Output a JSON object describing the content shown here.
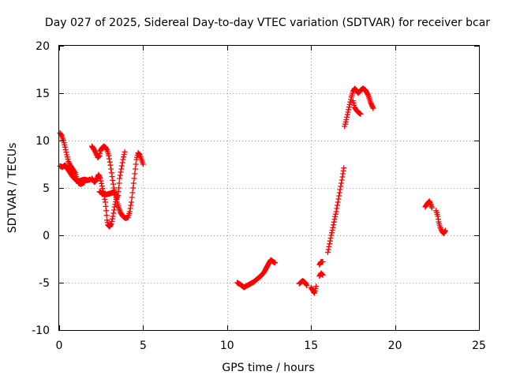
{
  "chart_data": {
    "type": "scatter",
    "title": "Day 027 of 2025, Sidereal Day-to-day VTEC variation (SDTVAR) for receiver bcar",
    "xlabel": "GPS time / hours",
    "ylabel": "SDTVAR / TECUs",
    "xlim": [
      0,
      25
    ],
    "ylim": [
      -10,
      20
    ],
    "xticks": [
      0,
      5,
      10,
      15,
      20,
      25
    ],
    "yticks": [
      -10,
      -5,
      0,
      5,
      10,
      15,
      20
    ],
    "xtick_labels": [
      "0",
      "5",
      "10",
      "15",
      "20",
      "25"
    ],
    "ytick_labels": [
      "-10",
      "-5",
      "0",
      "5",
      "10",
      "15",
      "20"
    ],
    "grid": true,
    "marker": "+",
    "color": "#ff0000",
    "series": [
      {
        "name": "SDTVAR",
        "segments": [
          [
            [
              0.05,
              7.3
            ],
            [
              0.2,
              7.2
            ],
            [
              0.35,
              7.4
            ],
            [
              0.5,
              7.0
            ],
            [
              0.65,
              6.6
            ],
            [
              0.8,
              6.2
            ],
            [
              0.95,
              5.9
            ],
            [
              1.1,
              5.7
            ],
            [
              1.3,
              5.8
            ],
            [
              1.5,
              5.9
            ],
            [
              1.7,
              5.8
            ],
            [
              1.85,
              5.9
            ]
          ],
          [
            [
              0.05,
              10.8
            ],
            [
              0.15,
              10.5
            ],
            [
              0.25,
              10.0
            ],
            [
              0.35,
              9.3
            ],
            [
              0.45,
              8.5
            ],
            [
              0.55,
              7.8
            ],
            [
              0.65,
              7.4
            ],
            [
              0.8,
              7.0
            ],
            [
              0.95,
              6.6
            ],
            [
              1.05,
              6.0
            ],
            [
              1.15,
              5.5
            ],
            [
              1.3,
              5.4
            ],
            [
              1.5,
              5.6
            ]
          ],
          [
            [
              1.95,
              9.4
            ],
            [
              2.1,
              9.0
            ],
            [
              2.2,
              8.6
            ],
            [
              2.3,
              8.2
            ],
            [
              2.4,
              8.4
            ],
            [
              2.45,
              8.9
            ],
            [
              2.55,
              9.2
            ],
            [
              2.65,
              9.4
            ],
            [
              2.75,
              9.3
            ],
            [
              2.85,
              9.0
            ],
            [
              2.95,
              8.4
            ],
            [
              3.05,
              7.4
            ],
            [
              3.15,
              6.2
            ],
            [
              3.25,
              5.0
            ],
            [
              3.35,
              4.3
            ],
            [
              3.45,
              3.5
            ],
            [
              3.55,
              2.9
            ],
            [
              3.65,
              2.4
            ],
            [
              3.8,
              2.0
            ],
            [
              3.95,
              1.8
            ],
            [
              4.1,
              1.9
            ],
            [
              4.2,
              2.5
            ],
            [
              4.3,
              3.5
            ],
            [
              4.4,
              5.0
            ],
            [
              4.5,
              6.5
            ],
            [
              4.6,
              8.0
            ],
            [
              4.7,
              8.7
            ],
            [
              4.8,
              8.5
            ],
            [
              4.9,
              8.0
            ],
            [
              5.0,
              7.5
            ]
          ],
          [
            [
              1.95,
              6.0
            ],
            [
              2.1,
              5.6
            ],
            [
              2.2,
              5.8
            ],
            [
              2.3,
              6.2
            ],
            [
              2.35,
              6.4
            ],
            [
              2.45,
              6.0
            ],
            [
              2.55,
              5.2
            ],
            [
              2.65,
              4.4
            ],
            [
              2.75,
              3.5
            ],
            [
              2.8,
              2.6
            ],
            [
              2.85,
              1.6
            ],
            [
              2.9,
              1.1
            ],
            [
              3.0,
              0.9
            ],
            [
              3.1,
              1.2
            ],
            [
              3.2,
              2.0
            ],
            [
              3.3,
              3.0
            ],
            [
              3.4,
              3.8
            ],
            [
              3.5,
              4.2
            ],
            [
              3.55,
              5.0
            ],
            [
              3.6,
              6.0
            ],
            [
              3.7,
              7.0
            ],
            [
              3.8,
              8.0
            ],
            [
              3.9,
              8.8
            ]
          ],
          [
            [
              2.4,
              4.6
            ],
            [
              2.6,
              4.4
            ],
            [
              2.8,
              4.3
            ],
            [
              3.0,
              4.4
            ],
            [
              3.2,
              4.5
            ],
            [
              3.4,
              4.3
            ]
          ],
          [
            [
              10.6,
              -5.0
            ],
            [
              10.8,
              -5.2
            ],
            [
              11.0,
              -5.5
            ],
            [
              11.2,
              -5.3
            ],
            [
              11.4,
              -5.1
            ],
            [
              11.6,
              -4.9
            ],
            [
              11.8,
              -4.6
            ],
            [
              12.0,
              -4.3
            ],
            [
              12.2,
              -3.9
            ],
            [
              12.35,
              -3.4
            ],
            [
              12.5,
              -2.9
            ],
            [
              12.6,
              -2.6
            ],
            [
              12.75,
              -2.8
            ],
            [
              12.85,
              -2.9
            ]
          ],
          [
            [
              14.3,
              -5.1
            ],
            [
              14.5,
              -4.8
            ],
            [
              14.65,
              -5.0
            ],
            [
              14.75,
              -5.3
            ]
          ],
          [
            [
              15.0,
              -5.5
            ],
            [
              15.1,
              -5.8
            ],
            [
              15.2,
              -6.1
            ],
            [
              15.3,
              -5.4
            ]
          ],
          [
            [
              15.5,
              -4.3
            ],
            [
              15.6,
              -4.0
            ],
            [
              15.7,
              -4.2
            ]
          ],
          [
            [
              15.5,
              -3.1
            ],
            [
              15.6,
              -2.8
            ],
            [
              15.7,
              -2.8
            ]
          ],
          [
            [
              16.0,
              -1.8
            ],
            [
              16.1,
              -0.9
            ],
            [
              16.2,
              0.0
            ],
            [
              16.3,
              0.8
            ],
            [
              16.4,
              1.7
            ],
            [
              16.5,
              2.5
            ],
            [
              16.6,
              3.5
            ],
            [
              16.7,
              4.5
            ],
            [
              16.8,
              5.5
            ],
            [
              16.9,
              6.5
            ],
            [
              16.95,
              7.1
            ]
          ],
          [
            [
              17.0,
              11.5
            ],
            [
              17.1,
              12.2
            ],
            [
              17.2,
              13.0
            ],
            [
              17.3,
              13.8
            ],
            [
              17.4,
              14.6
            ],
            [
              17.5,
              15.2
            ],
            [
              17.6,
              15.5
            ],
            [
              17.7,
              15.3
            ],
            [
              17.8,
              15.0
            ],
            [
              17.95,
              15.3
            ],
            [
              18.1,
              15.5
            ],
            [
              18.25,
              15.3
            ],
            [
              18.4,
              14.8
            ],
            [
              18.55,
              14.0
            ],
            [
              18.7,
              13.4
            ]
          ],
          [
            [
              17.5,
              14.2
            ],
            [
              17.6,
              13.5
            ],
            [
              17.7,
              13.2
            ],
            [
              17.8,
              13.0
            ],
            [
              17.95,
              12.8
            ]
          ],
          [
            [
              21.8,
              3.0
            ],
            [
              21.95,
              3.4
            ],
            [
              22.05,
              3.6
            ],
            [
              22.15,
              3.2
            ],
            [
              22.2,
              2.9
            ]
          ],
          [
            [
              22.45,
              2.6
            ],
            [
              22.55,
              2.0
            ],
            [
              22.6,
              1.4
            ],
            [
              22.7,
              0.8
            ],
            [
              22.8,
              0.4
            ],
            [
              22.9,
              0.2
            ],
            [
              23.0,
              0.5
            ]
          ]
        ]
      }
    ]
  }
}
